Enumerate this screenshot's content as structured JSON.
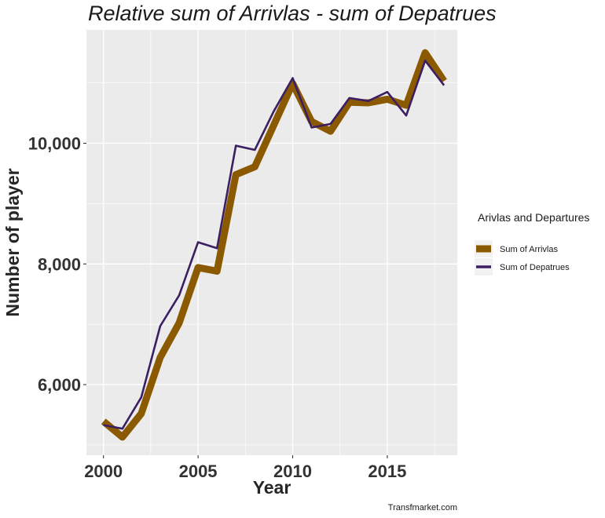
{
  "chart_data": {
    "type": "line",
    "title": "Relative  sum of Arrivlas - sum of Depatrues",
    "xlabel": "Year",
    "ylabel": "Number of player",
    "caption": "Transfmarket.com",
    "xlim": [
      1999.1,
      2018.7
    ],
    "ylim": [
      4830,
      11880
    ],
    "x_ticks": [
      2000,
      2005,
      2010,
      2015
    ],
    "y_ticks": [
      6000,
      8000,
      10000
    ],
    "y_tick_labels": [
      "6,000",
      "8,000",
      "10,000"
    ],
    "grid": true,
    "legend": {
      "title": "Arivlas and Departures",
      "position": "right"
    },
    "x": [
      2000,
      2001,
      2002,
      2003,
      2004,
      2005,
      2006,
      2007,
      2008,
      2009,
      2010,
      2011,
      2012,
      2013,
      2014,
      2015,
      2016,
      2017,
      2018
    ],
    "series": [
      {
        "name": "Sum of Arrivlas",
        "color": "#8B5A00",
        "values": [
          5390,
          5130,
          5520,
          6450,
          7020,
          7940,
          7880,
          9480,
          9610,
          10300,
          10990,
          10360,
          10200,
          10680,
          10670,
          10730,
          10630,
          11500,
          11030
        ]
      },
      {
        "name": "Sum of Depatrues",
        "color": "#3B1F62",
        "values": [
          5330,
          5270,
          5790,
          6970,
          7480,
          8360,
          8260,
          9960,
          9890,
          10530,
          11080,
          10260,
          10320,
          10750,
          10700,
          10850,
          10460,
          11370,
          10960
        ]
      }
    ]
  }
}
